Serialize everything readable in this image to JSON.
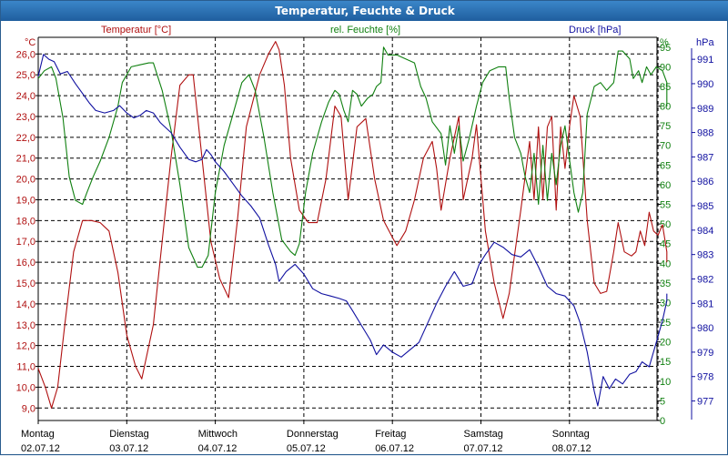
{
  "window": {
    "title": "Temperatur, Feuchte & Druck"
  },
  "legend": {
    "temp_label": "Temperatur [°C]",
    "hum_label": "rel. Feuchte [%]",
    "press_label": "Druck [hPa]",
    "temp_unit": "°C",
    "hum_unit": "%",
    "press_unit": "hPa"
  },
  "colors": {
    "temperature": "#b01010",
    "humidity": "#108010",
    "pressure": "#1010a0",
    "grid": "#000000"
  },
  "chart_data": {
    "type": "line",
    "title": "Temperatur, Feuchte & Druck",
    "x_days": [
      {
        "day": "Montag",
        "date": "02.07.12"
      },
      {
        "day": "Dienstag",
        "date": "03.07.12"
      },
      {
        "day": "Mittwoch",
        "date": "04.07.12"
      },
      {
        "day": "Donnerstag",
        "date": "05.07.12"
      },
      {
        "day": "Freitag",
        "date": "06.07.12"
      },
      {
        "day": "Samstag",
        "date": "07.07.12"
      },
      {
        "day": "Sonntag",
        "date": "08.07.12"
      }
    ],
    "x_range_days": [
      0,
      7.1
    ],
    "axes": {
      "temperature": {
        "min": 8.4,
        "max": 26.8,
        "ticks": [
          "9,0",
          "10,0",
          "11,0",
          "12,0",
          "13,0",
          "14,0",
          "15,0",
          "16,0",
          "17,0",
          "18,0",
          "19,0",
          "20,0",
          "21,0",
          "22,0",
          "23,0",
          "24,0",
          "25,0",
          "26,0"
        ]
      },
      "humidity": {
        "min": 0,
        "max": 97.5,
        "ticks": [
          "0",
          "5",
          "10",
          "15",
          "20",
          "25",
          "30",
          "35",
          "40",
          "45",
          "50",
          "55",
          "60",
          "65",
          "70",
          "75",
          "80",
          "85",
          "90",
          "95"
        ]
      },
      "pressure": {
        "min": 976.2,
        "max": 991.9,
        "ticks": [
          "977",
          "978",
          "979",
          "980",
          "981",
          "982",
          "983",
          "984",
          "985",
          "986",
          "987",
          "988",
          "989",
          "990",
          "991"
        ]
      }
    },
    "grid": true,
    "series": [
      {
        "name": "Temperatur [°C]",
        "axis": "temperature",
        "points": [
          [
            0,
            10.9
          ],
          [
            0.08,
            10.0
          ],
          [
            0.15,
            9.0
          ],
          [
            0.22,
            10.0
          ],
          [
            0.3,
            13.0
          ],
          [
            0.4,
            16.5
          ],
          [
            0.5,
            18.0
          ],
          [
            0.6,
            18.0
          ],
          [
            0.7,
            17.9
          ],
          [
            0.8,
            17.5
          ],
          [
            0.9,
            15.5
          ],
          [
            1.0,
            12.5
          ],
          [
            1.1,
            11.0
          ],
          [
            1.17,
            10.4
          ],
          [
            1.3,
            13.0
          ],
          [
            1.4,
            17.0
          ],
          [
            1.5,
            21.0
          ],
          [
            1.6,
            24.5
          ],
          [
            1.7,
            25.0
          ],
          [
            1.75,
            25.0
          ],
          [
            1.85,
            21.0
          ],
          [
            1.95,
            17.0
          ],
          [
            2.05,
            15.2
          ],
          [
            2.15,
            14.3
          ],
          [
            2.25,
            18.0
          ],
          [
            2.35,
            22.5
          ],
          [
            2.5,
            25.0
          ],
          [
            2.6,
            26.0
          ],
          [
            2.68,
            26.6
          ],
          [
            2.72,
            26.2
          ],
          [
            2.78,
            24.5
          ],
          [
            2.85,
            21.0
          ],
          [
            2.95,
            18.5
          ],
          [
            3.05,
            17.9
          ],
          [
            3.15,
            17.9
          ],
          [
            3.25,
            20.0
          ],
          [
            3.35,
            23.5
          ],
          [
            3.42,
            23.0
          ],
          [
            3.5,
            19.0
          ],
          [
            3.6,
            22.5
          ],
          [
            3.7,
            22.9
          ],
          [
            3.8,
            20.0
          ],
          [
            3.9,
            18.0
          ],
          [
            4.0,
            17.2
          ],
          [
            4.05,
            16.8
          ],
          [
            4.15,
            17.5
          ],
          [
            4.25,
            19.0
          ],
          [
            4.35,
            21.0
          ],
          [
            4.45,
            21.8
          ],
          [
            4.5,
            20.5
          ],
          [
            4.55,
            18.5
          ],
          [
            4.65,
            21.0
          ],
          [
            4.75,
            23.0
          ],
          [
            4.8,
            19.0
          ],
          [
            4.9,
            21.0
          ],
          [
            4.95,
            22.6
          ],
          [
            5.05,
            17.5
          ],
          [
            5.15,
            15.0
          ],
          [
            5.25,
            13.3
          ],
          [
            5.32,
            14.5
          ],
          [
            5.45,
            18.5
          ],
          [
            5.55,
            21.8
          ],
          [
            5.6,
            19.0
          ],
          [
            5.65,
            22.5
          ],
          [
            5.7,
            19.0
          ],
          [
            5.75,
            22.5
          ],
          [
            5.8,
            23.0
          ],
          [
            5.85,
            18.5
          ],
          [
            5.9,
            22.5
          ],
          [
            5.95,
            20.5
          ],
          [
            6.0,
            22.5
          ],
          [
            6.05,
            24.0
          ],
          [
            6.12,
            23.0
          ],
          [
            6.2,
            18.0
          ],
          [
            6.28,
            15.0
          ],
          [
            6.35,
            14.5
          ],
          [
            6.42,
            14.6
          ],
          [
            6.5,
            16.5
          ],
          [
            6.55,
            17.9
          ],
          [
            6.62,
            16.5
          ],
          [
            6.7,
            16.3
          ],
          [
            6.75,
            16.5
          ],
          [
            6.8,
            17.5
          ],
          [
            6.85,
            16.8
          ],
          [
            6.9,
            18.4
          ],
          [
            6.95,
            17.5
          ],
          [
            7.0,
            17.3
          ],
          [
            7.05,
            17.8
          ],
          [
            7.1,
            16.5
          ],
          [
            7.15,
            16.0
          ],
          [
            7.18,
            16.0
          ]
        ]
      },
      {
        "name": "rel. Feuchte [%]",
        "axis": "humidity",
        "points": [
          [
            0,
            87
          ],
          [
            0.07,
            89
          ],
          [
            0.15,
            90
          ],
          [
            0.2,
            87
          ],
          [
            0.28,
            77
          ],
          [
            0.35,
            62
          ],
          [
            0.42,
            56
          ],
          [
            0.5,
            55
          ],
          [
            0.55,
            58
          ],
          [
            0.62,
            62
          ],
          [
            0.7,
            66
          ],
          [
            0.8,
            72
          ],
          [
            0.9,
            80
          ],
          [
            0.95,
            86
          ],
          [
            1.05,
            90
          ],
          [
            1.15,
            90.5
          ],
          [
            1.25,
            91
          ],
          [
            1.3,
            91
          ],
          [
            1.4,
            84
          ],
          [
            1.5,
            74
          ],
          [
            1.6,
            60
          ],
          [
            1.7,
            44
          ],
          [
            1.8,
            39
          ],
          [
            1.85,
            39
          ],
          [
            1.92,
            42
          ],
          [
            2.0,
            58
          ],
          [
            2.1,
            70
          ],
          [
            2.2,
            78
          ],
          [
            2.3,
            86
          ],
          [
            2.38,
            88
          ],
          [
            2.45,
            84
          ],
          [
            2.55,
            72
          ],
          [
            2.65,
            58
          ],
          [
            2.75,
            46
          ],
          [
            2.85,
            43
          ],
          [
            2.9,
            42
          ],
          [
            2.95,
            45
          ],
          [
            3.02,
            58
          ],
          [
            3.1,
            68
          ],
          [
            3.2,
            76
          ],
          [
            3.28,
            81
          ],
          [
            3.35,
            84
          ],
          [
            3.4,
            83
          ],
          [
            3.45,
            79
          ],
          [
            3.5,
            76
          ],
          [
            3.55,
            84
          ],
          [
            3.6,
            83
          ],
          [
            3.65,
            80
          ],
          [
            3.72,
            82
          ],
          [
            3.78,
            83
          ],
          [
            3.82,
            85
          ],
          [
            3.87,
            86
          ],
          [
            3.9,
            95
          ],
          [
            3.95,
            93
          ],
          [
            4.05,
            93
          ],
          [
            4.15,
            92
          ],
          [
            4.25,
            91
          ],
          [
            4.32,
            85
          ],
          [
            4.38,
            82
          ],
          [
            4.45,
            76
          ],
          [
            4.55,
            73
          ],
          [
            4.6,
            65
          ],
          [
            4.65,
            75
          ],
          [
            4.7,
            68
          ],
          [
            4.75,
            75
          ],
          [
            4.8,
            66
          ],
          [
            4.87,
            72
          ],
          [
            4.95,
            80
          ],
          [
            5.02,
            86
          ],
          [
            5.1,
            89
          ],
          [
            5.2,
            90
          ],
          [
            5.28,
            90
          ],
          [
            5.32,
            82
          ],
          [
            5.38,
            72
          ],
          [
            5.45,
            68
          ],
          [
            5.5,
            62
          ],
          [
            5.55,
            58
          ],
          [
            5.6,
            68
          ],
          [
            5.65,
            55
          ],
          [
            5.7,
            70
          ],
          [
            5.75,
            56
          ],
          [
            5.8,
            68
          ],
          [
            5.85,
            60
          ],
          [
            5.9,
            70
          ],
          [
            5.95,
            75
          ],
          [
            6.05,
            58
          ],
          [
            6.1,
            53
          ],
          [
            6.15,
            58
          ],
          [
            6.2,
            78
          ],
          [
            6.28,
            85
          ],
          [
            6.35,
            86
          ],
          [
            6.42,
            84
          ],
          [
            6.5,
            86
          ],
          [
            6.55,
            94
          ],
          [
            6.6,
            94
          ],
          [
            6.68,
            92
          ],
          [
            6.72,
            87
          ],
          [
            6.78,
            89
          ],
          [
            6.82,
            86
          ],
          [
            6.87,
            90
          ],
          [
            6.92,
            88
          ],
          [
            6.98,
            90
          ],
          [
            7.05,
            89
          ],
          [
            7.1,
            86
          ],
          [
            7.12,
            80
          ],
          [
            7.18,
            81
          ]
        ]
      },
      {
        "name": "Druck [hPa]",
        "axis": "pressure",
        "points": [
          [
            0,
            990.3
          ],
          [
            0.06,
            991.2
          ],
          [
            0.12,
            991.0
          ],
          [
            0.18,
            990.9
          ],
          [
            0.25,
            990.4
          ],
          [
            0.33,
            990.5
          ],
          [
            0.42,
            990.0
          ],
          [
            0.5,
            989.6
          ],
          [
            0.58,
            989.2
          ],
          [
            0.65,
            988.9
          ],
          [
            0.75,
            988.8
          ],
          [
            0.85,
            988.9
          ],
          [
            0.92,
            989.1
          ],
          [
            1.0,
            988.8
          ],
          [
            1.08,
            988.6
          ],
          [
            1.15,
            988.7
          ],
          [
            1.22,
            988.9
          ],
          [
            1.3,
            988.8
          ],
          [
            1.38,
            988.4
          ],
          [
            1.5,
            988.0
          ],
          [
            1.6,
            987.4
          ],
          [
            1.7,
            986.9
          ],
          [
            1.78,
            986.8
          ],
          [
            1.85,
            986.9
          ],
          [
            1.9,
            987.3
          ],
          [
            1.95,
            987.1
          ],
          [
            2.0,
            986.8
          ],
          [
            2.1,
            986.4
          ],
          [
            2.2,
            985.9
          ],
          [
            2.3,
            985.4
          ],
          [
            2.4,
            985.0
          ],
          [
            2.5,
            984.5
          ],
          [
            2.6,
            983.4
          ],
          [
            2.68,
            982.6
          ],
          [
            2.72,
            981.9
          ],
          [
            2.8,
            982.3
          ],
          [
            2.9,
            982.6
          ],
          [
            3.0,
            982.2
          ],
          [
            3.1,
            981.6
          ],
          [
            3.2,
            981.4
          ],
          [
            3.3,
            981.3
          ],
          [
            3.4,
            981.2
          ],
          [
            3.48,
            981.1
          ],
          [
            3.55,
            980.7
          ],
          [
            3.65,
            980.1
          ],
          [
            3.75,
            979.5
          ],
          [
            3.82,
            978.9
          ],
          [
            3.9,
            979.3
          ],
          [
            4.0,
            979.0
          ],
          [
            4.1,
            978.8
          ],
          [
            4.2,
            979.1
          ],
          [
            4.3,
            979.4
          ],
          [
            4.4,
            980.2
          ],
          [
            4.5,
            981.0
          ],
          [
            4.6,
            981.7
          ],
          [
            4.7,
            982.3
          ],
          [
            4.8,
            981.7
          ],
          [
            4.9,
            981.8
          ],
          [
            4.98,
            982.6
          ],
          [
            5.05,
            983.0
          ],
          [
            5.15,
            983.5
          ],
          [
            5.25,
            983.3
          ],
          [
            5.35,
            983.0
          ],
          [
            5.45,
            982.9
          ],
          [
            5.55,
            983.2
          ],
          [
            5.65,
            982.5
          ],
          [
            5.75,
            981.7
          ],
          [
            5.85,
            981.4
          ],
          [
            5.95,
            981.3
          ],
          [
            6.05,
            980.9
          ],
          [
            6.12,
            980.2
          ],
          [
            6.2,
            979.0
          ],
          [
            6.28,
            977.4
          ],
          [
            6.32,
            976.8
          ],
          [
            6.38,
            978.0
          ],
          [
            6.45,
            977.5
          ],
          [
            6.52,
            977.9
          ],
          [
            6.6,
            977.7
          ],
          [
            6.68,
            978.1
          ],
          [
            6.75,
            978.2
          ],
          [
            6.82,
            978.6
          ],
          [
            6.9,
            978.4
          ],
          [
            6.98,
            979.4
          ],
          [
            7.05,
            980.3
          ],
          [
            7.12,
            981.1
          ],
          [
            7.18,
            981.4
          ]
        ]
      }
    ]
  }
}
